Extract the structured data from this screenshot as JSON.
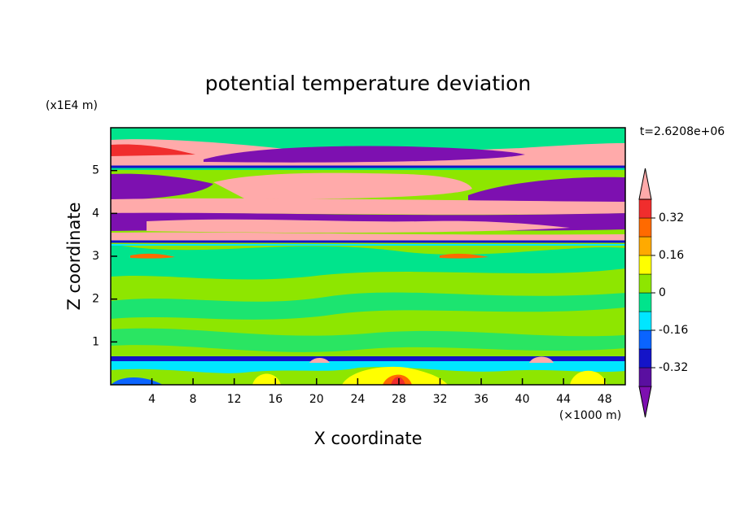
{
  "chart_data": {
    "type": "contour",
    "title": "potential temperature deviation",
    "xlabel": "X coordinate",
    "ylabel": "Z coordinate",
    "xunit": "(×1000 m)",
    "yunit": "(x1E4 m)",
    "annotation": "t=2.6208e+06",
    "xlim": [
      0,
      50
    ],
    "xticks": [
      4,
      8,
      12,
      16,
      20,
      24,
      28,
      32,
      36,
      40,
      44,
      48
    ],
    "ylim": [
      0,
      6
    ],
    "yticks": [
      1,
      2,
      3,
      4,
      5
    ],
    "colorbar": {
      "levels": [
        -0.4,
        -0.32,
        -0.24,
        -0.16,
        -0.08,
        0,
        0.08,
        0.16,
        0.24,
        0.32,
        0.4
      ],
      "colors": [
        "#7d10b0",
        "#5a0fa0",
        "#1414c8",
        "#0a64ff",
        "#00e6ff",
        "#00e48c",
        "#8ee600",
        "#ffff00",
        "#ffaa00",
        "#ff6a00",
        "#f02d2d",
        "#ffaaaa"
      ],
      "ticks": [
        -0.32,
        -0.16,
        0,
        0.16,
        0.32
      ]
    }
  }
}
